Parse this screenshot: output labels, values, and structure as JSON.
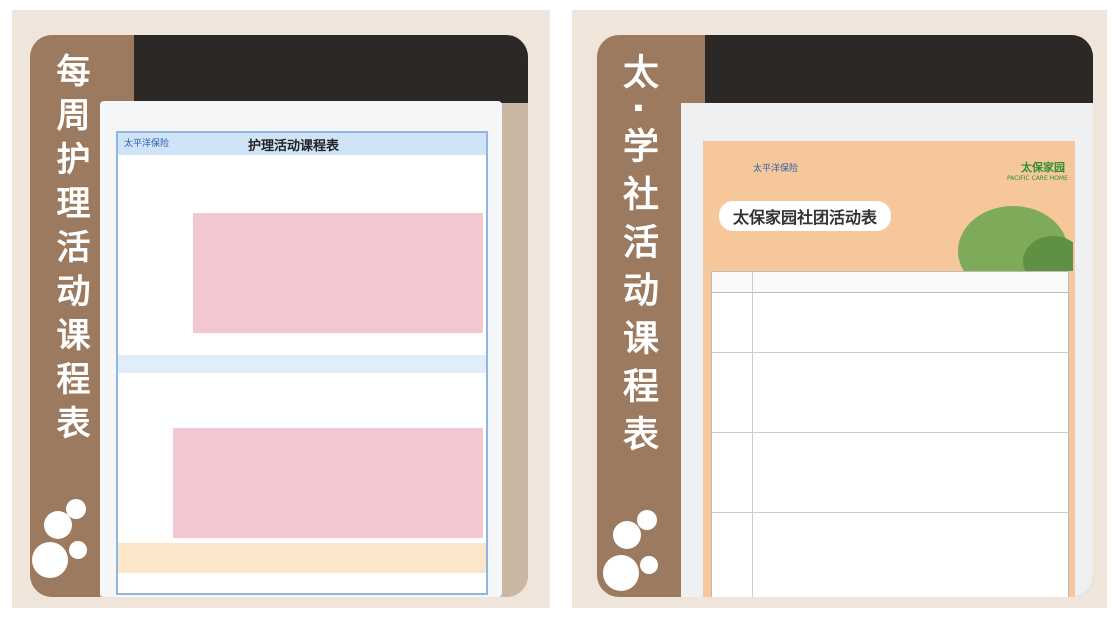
{
  "panels": [
    {
      "vertical_title": "每周护理活动课程表",
      "poster_title": "护理活动课程表",
      "logo": "太平洋保险"
    },
    {
      "vertical_title": "太·学社活动课程表",
      "poster_title": "太保家园社团活动表",
      "logo": "太平洋保险",
      "brand": "太保家园",
      "brand_en": "PACIFIC CARE HOME"
    }
  ]
}
